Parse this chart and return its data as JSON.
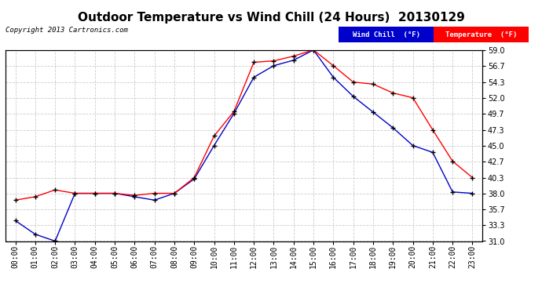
{
  "title": "Outdoor Temperature vs Wind Chill (24 Hours)  20130129",
  "copyright": "Copyright 2013 Cartronics.com",
  "hours": [
    "00:00",
    "01:00",
    "02:00",
    "03:00",
    "04:00",
    "05:00",
    "06:00",
    "07:00",
    "08:00",
    "09:00",
    "10:00",
    "11:00",
    "12:00",
    "13:00",
    "14:00",
    "15:00",
    "16:00",
    "17:00",
    "18:00",
    "19:00",
    "20:00",
    "21:00",
    "22:00",
    "23:00"
  ],
  "temperature": [
    37.0,
    37.5,
    38.5,
    38.0,
    38.0,
    38.0,
    37.7,
    38.0,
    38.0,
    40.3,
    46.4,
    50.0,
    57.2,
    57.4,
    58.1,
    59.0,
    56.7,
    54.3,
    54.0,
    52.7,
    52.0,
    47.3,
    42.7,
    40.3
  ],
  "wind_chill": [
    34.0,
    32.0,
    31.0,
    38.0,
    38.0,
    38.0,
    37.5,
    37.0,
    38.0,
    40.1,
    45.0,
    49.7,
    55.0,
    56.7,
    57.5,
    59.0,
    55.0,
    52.2,
    49.9,
    47.6,
    45.0,
    44.0,
    38.2,
    38.0
  ],
  "temp_color": "#ff0000",
  "wind_chill_color": "#0000cc",
  "ylim_min": 31.0,
  "ylim_max": 59.0,
  "yticks": [
    31.0,
    33.3,
    35.7,
    38.0,
    40.3,
    42.7,
    45.0,
    47.3,
    49.7,
    52.0,
    54.3,
    56.7,
    59.0
  ],
  "background_color": "#ffffff",
  "plot_bg_color": "#ffffff",
  "grid_color": "#cccccc",
  "legend_wind_bg": "#0000cc",
  "legend_temp_bg": "#ff0000",
  "legend_text_color": "#ffffff",
  "title_fontsize": 11,
  "axis_fontsize": 7,
  "copyright_fontsize": 6.5
}
